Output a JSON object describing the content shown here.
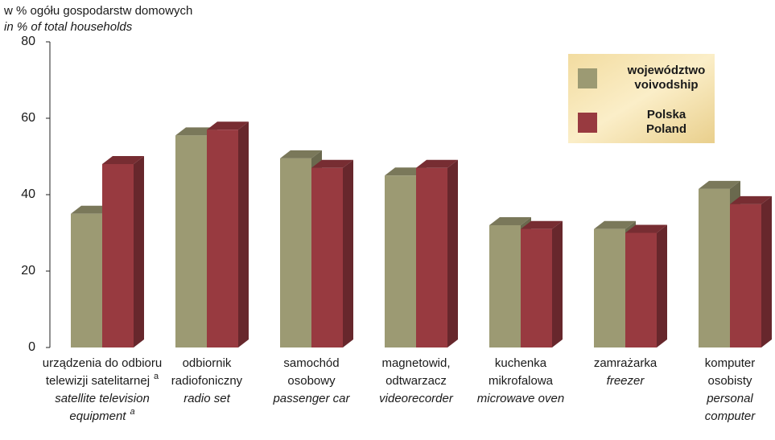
{
  "chart_data": {
    "type": "bar3d",
    "y_axis_label": "w % ogółu gospodarstw domowych",
    "y_axis_label_en": "in % of total households",
    "note_mark": "a",
    "categories": [
      [
        "urządzenia do odbioru",
        "telewizji satelitarnej"
      ],
      [
        "odbiornik",
        "radiofoniczny"
      ],
      [
        "samochód",
        "osobowy"
      ],
      [
        "magnetowid,",
        "odtwarzacz"
      ],
      [
        "kuchenka",
        "mikrofalowa"
      ],
      [
        "zamrażarka"
      ],
      [
        "komputer",
        "osobisty"
      ]
    ],
    "categories_en": [
      [
        "satellite television",
        "equipment"
      ],
      [
        "radio set"
      ],
      [
        "passenger car"
      ],
      [
        "videorecorder"
      ],
      [
        "microwave oven"
      ],
      [
        "freezer"
      ],
      [
        "personal",
        "computer"
      ]
    ],
    "series": [
      {
        "name": "województwo",
        "name_en": "voivodship",
        "color": "#9c9a73",
        "values": [
          35,
          55.5,
          49.5,
          45,
          32,
          31,
          41.5
        ]
      },
      {
        "name": "Polska",
        "name_en": "Poland",
        "color": "#983a40",
        "values": [
          48,
          57,
          47,
          47,
          31,
          30,
          37.5
        ]
      }
    ],
    "ylim": [
      0,
      80
    ],
    "yticks": [
      0,
      20,
      40,
      60,
      80
    ],
    "legend": "top-right"
  }
}
